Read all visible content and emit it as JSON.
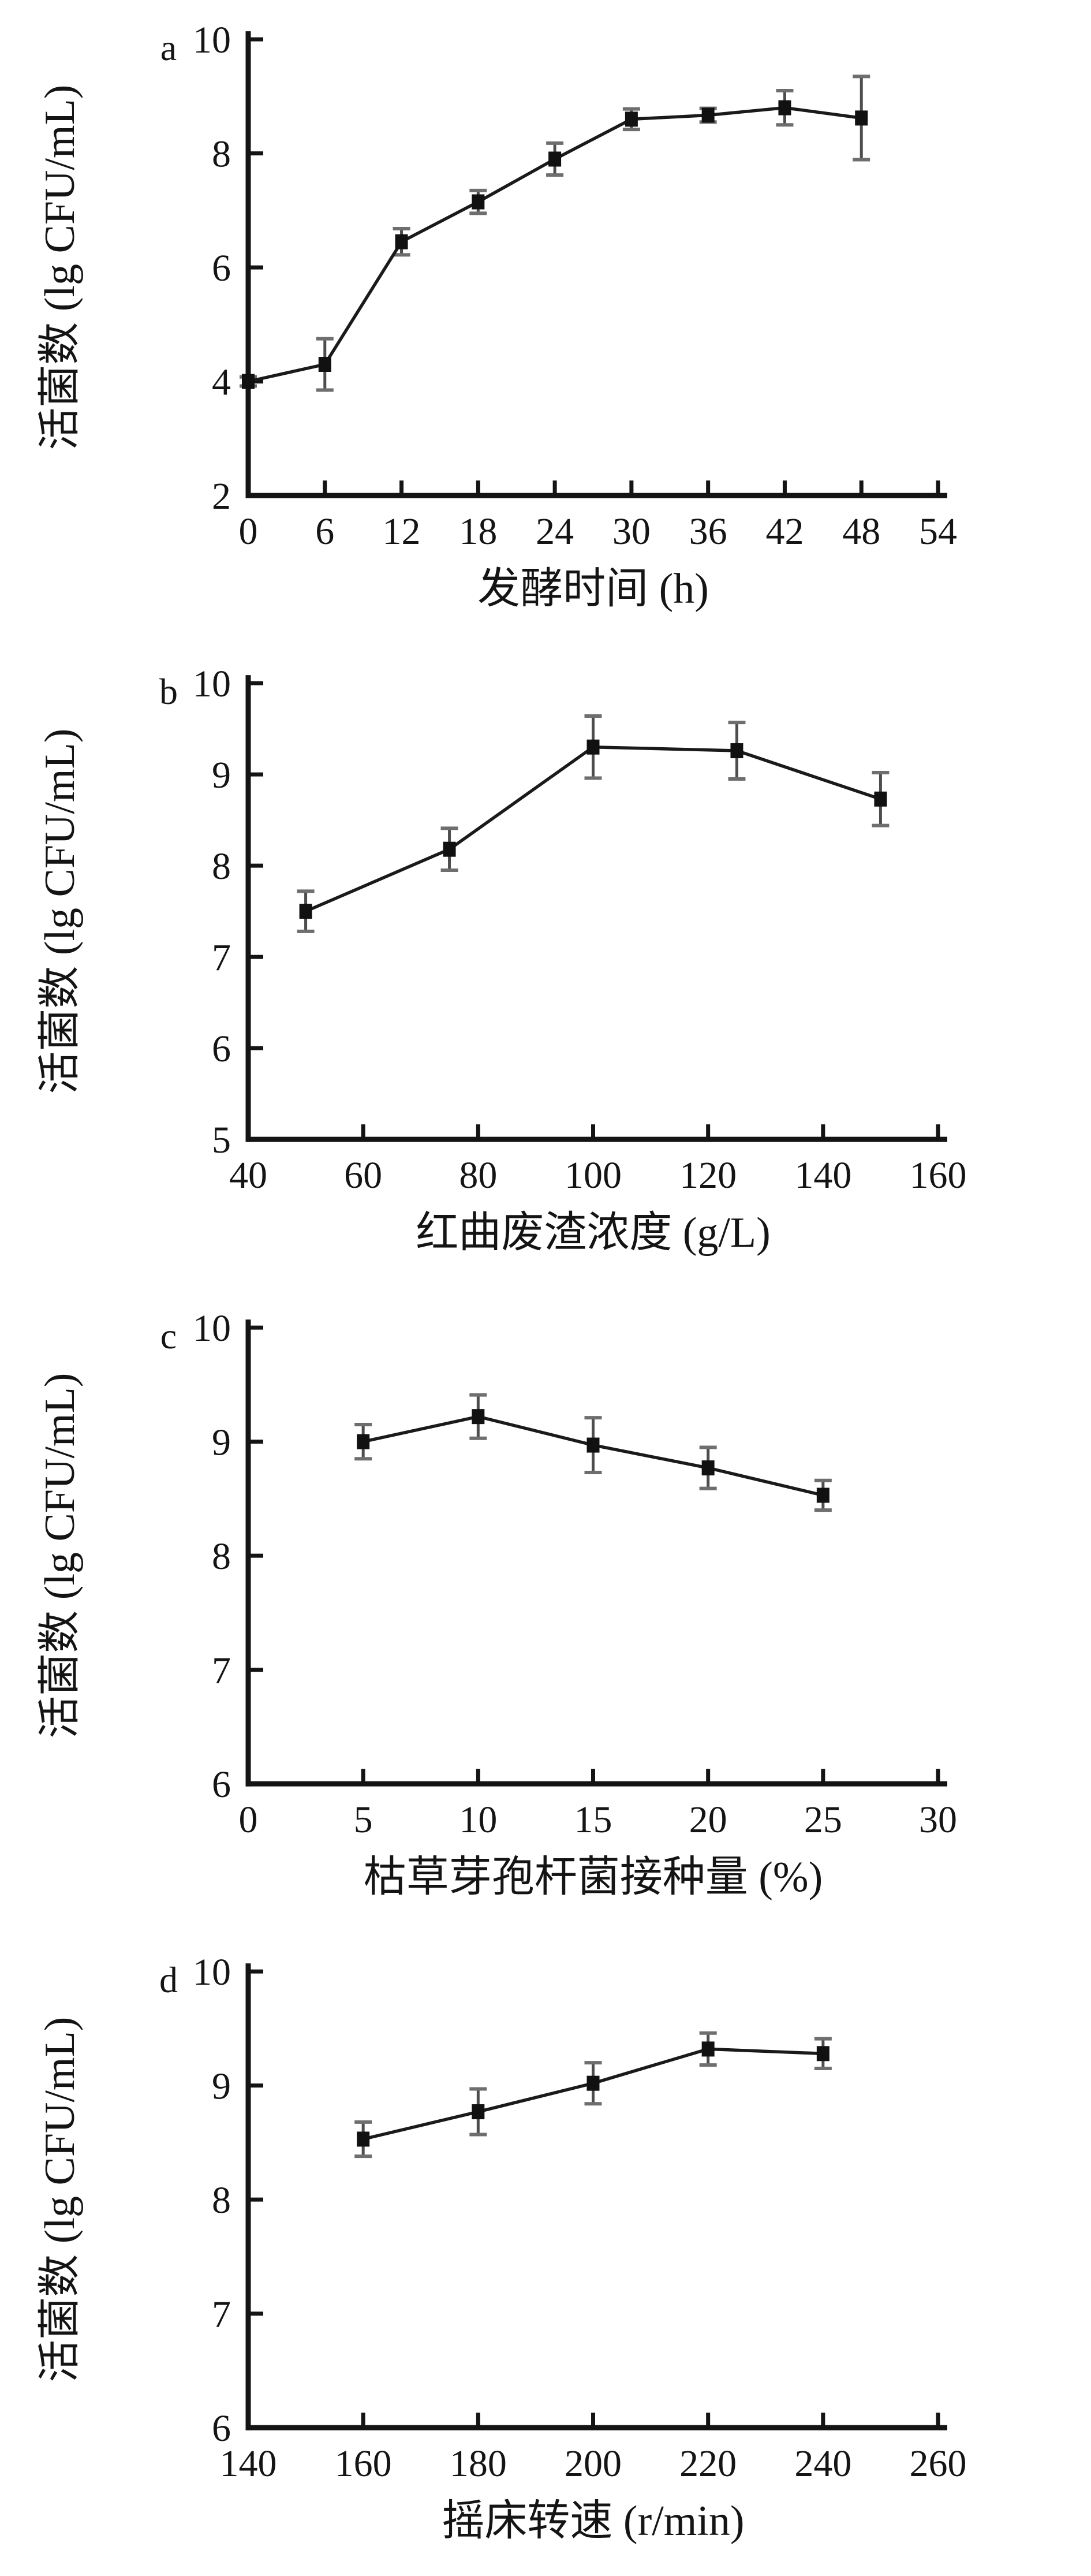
{
  "figure": {
    "background": "#ffffff",
    "y_axis_title": "活菌数 (lg CFU/mL)"
  },
  "colors": {
    "ink": "#141414",
    "data_line": "#1a1a1a",
    "marker": "#111111",
    "error_bar": "#4d4d4d",
    "error_cap": "#6e6e6e"
  },
  "chart_data": [
    {
      "type": "line",
      "panel_label": "a",
      "title": "",
      "xlabel": "发酵时间 (h)",
      "ylabel": "活菌数 (lg CFU/mL)",
      "x": [
        0,
        6,
        12,
        18,
        24,
        30,
        36,
        42,
        48
      ],
      "y": [
        4.0,
        4.3,
        6.45,
        7.15,
        7.9,
        8.6,
        8.67,
        8.8,
        8.62
      ],
      "yerr": [
        0.08,
        0.45,
        0.23,
        0.2,
        0.28,
        0.18,
        0.12,
        0.3,
        0.73
      ],
      "xlim": [
        0,
        54
      ],
      "ylim": [
        2,
        10
      ],
      "xticks": [
        0,
        6,
        12,
        18,
        24,
        30,
        36,
        42,
        48,
        54
      ],
      "yticks": [
        2,
        4,
        6,
        8,
        10
      ],
      "grid": false,
      "legend": "none",
      "marker": "filled-square"
    },
    {
      "type": "line",
      "panel_label": "b",
      "title": "",
      "xlabel": "红曲废渣浓度 (g/L)",
      "ylabel": "活菌数 (lg CFU/mL)",
      "x": [
        50,
        75,
        100,
        125,
        150
      ],
      "y": [
        7.5,
        8.18,
        9.3,
        9.26,
        8.73
      ],
      "yerr": [
        0.22,
        0.23,
        0.34,
        0.31,
        0.29
      ],
      "xlim": [
        40,
        160
      ],
      "ylim": [
        5,
        10
      ],
      "xticks": [
        40,
        60,
        80,
        100,
        120,
        140,
        160
      ],
      "yticks": [
        5,
        6,
        7,
        8,
        9,
        10
      ],
      "grid": false,
      "legend": "none",
      "marker": "filled-square"
    },
    {
      "type": "line",
      "panel_label": "c",
      "title": "",
      "xlabel": "枯草芽孢杆菌接种量 (%)",
      "ylabel": "活菌数 (lg CFU/mL)",
      "x": [
        5,
        10,
        15,
        20,
        25
      ],
      "y": [
        9.0,
        9.22,
        8.97,
        8.77,
        8.53
      ],
      "yerr": [
        0.15,
        0.19,
        0.24,
        0.18,
        0.13
      ],
      "xlim": [
        0,
        30
      ],
      "ylim": [
        6,
        10
      ],
      "xticks": [
        0,
        5,
        10,
        15,
        20,
        25,
        30
      ],
      "yticks": [
        6,
        7,
        8,
        9,
        10
      ],
      "grid": false,
      "legend": "none",
      "marker": "filled-square"
    },
    {
      "type": "line",
      "panel_label": "d",
      "title": "",
      "xlabel": "摇床转速 (r/min)",
      "ylabel": "活菌数 (lg CFU/mL)",
      "x": [
        160,
        180,
        200,
        220,
        240
      ],
      "y": [
        8.53,
        8.77,
        9.02,
        9.32,
        9.28
      ],
      "yerr": [
        0.15,
        0.2,
        0.18,
        0.14,
        0.13
      ],
      "xlim": [
        140,
        260
      ],
      "ylim": [
        6,
        10
      ],
      "xticks": [
        140,
        160,
        180,
        200,
        220,
        240,
        260
      ],
      "yticks": [
        6,
        7,
        8,
        9,
        10
      ],
      "grid": false,
      "legend": "none",
      "marker": "filled-square"
    }
  ]
}
